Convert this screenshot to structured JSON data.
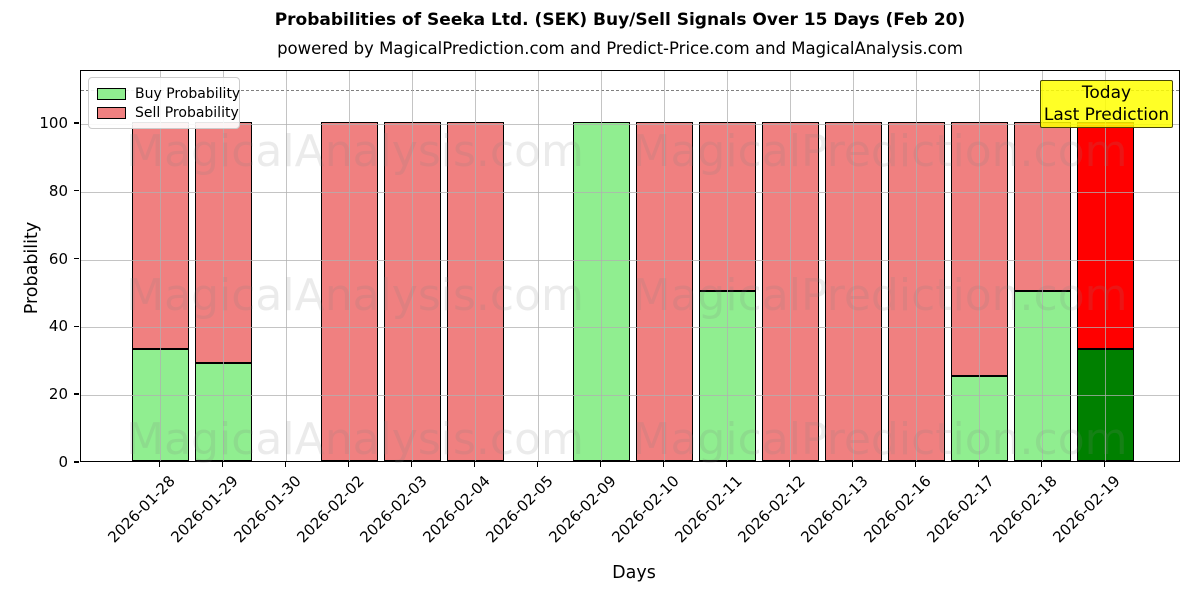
{
  "header": {
    "title": "Probabilities of Seeka Ltd. (SEK) Buy/Sell Signals Over 15 Days (Feb 20)",
    "subtitle": "powered by MagicalPrediction.com and Predict-Price.com and MagicalAnalysis.com"
  },
  "axis": {
    "ylabel": "Probability",
    "xlabel": "Days",
    "yticks": [
      0,
      20,
      40,
      60,
      80,
      100
    ],
    "ylim": [
      0,
      115.6
    ],
    "grid": true,
    "threshold_dashed_line_y": 110
  },
  "legend": {
    "position": "upper-left",
    "items": [
      {
        "label": "Buy Probability",
        "color": "#90EE90"
      },
      {
        "label": "Sell Probability",
        "color": "#F08080"
      }
    ]
  },
  "annotation": {
    "line1": "Today",
    "line2": "Last Prediction",
    "bg_color": "#FFFF00"
  },
  "watermarks": {
    "left_text": "MagicalAnalysis.com",
    "right_text": "MagicalPrediction.com"
  },
  "chart_data": {
    "type": "bar",
    "stacked": true,
    "categories": [
      "2026-01-28",
      "2026-01-29",
      "2026-01-30",
      "2026-02-02",
      "2026-02-03",
      "2026-02-04",
      "2026-02-05",
      "2026-02-09",
      "2026-02-10",
      "2026-02-11",
      "2026-02-12",
      "2026-02-13",
      "2026-02-16",
      "2026-02-17",
      "2026-02-18",
      "2026-02-19"
    ],
    "series": [
      {
        "name": "Buy Probability",
        "color": "#90EE90",
        "values": [
          33,
          29,
          null,
          0,
          0,
          0,
          null,
          100,
          0,
          50,
          0,
          0,
          0,
          25,
          50,
          33
        ]
      },
      {
        "name": "Sell Probability",
        "color": "#F08080",
        "values": [
          67,
          71,
          null,
          100,
          100,
          100,
          null,
          0,
          100,
          50,
          100,
          100,
          100,
          75,
          50,
          67
        ]
      }
    ],
    "last_bar": {
      "index": 15,
      "buy_color": "#008000",
      "sell_color": "#FF0000",
      "note": "Today / Last Prediction bar uses saturated colors"
    },
    "title": "Probabilities of Seeka Ltd. (SEK) Buy/Sell Signals Over 15 Days (Feb 20)",
    "xlabel": "Days",
    "ylabel": "Probability",
    "ylim": [
      0,
      115.6
    ],
    "legend_position": "upper left"
  }
}
